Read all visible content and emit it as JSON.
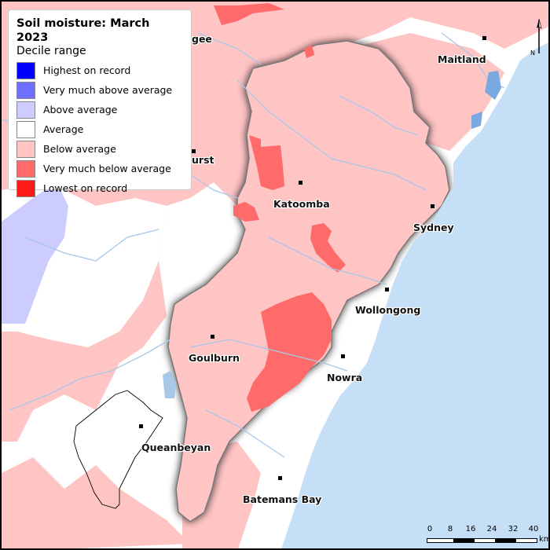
{
  "legend": {
    "title": "Soil moisture: March 2023",
    "subtitle": "Decile range",
    "items": [
      {
        "label": "Highest on record",
        "color": "#0000ff"
      },
      {
        "label": "Very much above average",
        "color": "#6f6fff"
      },
      {
        "label": "Above average",
        "color": "#ccccff"
      },
      {
        "label": "Average",
        "color": "#ffffff"
      },
      {
        "label": "Below average",
        "color": "#ffc4c4"
      },
      {
        "label": "Very much below average",
        "color": "#ff6a6a"
      },
      {
        "label": "Lowest on record",
        "color": "#ff1a1a"
      }
    ]
  },
  "places": {
    "mudgee": "gee",
    "bathurst": "urst",
    "maitland": "Maitland",
    "katoomba": "Katoomba",
    "sydney": "Sydney",
    "wollongong": "Wollongong",
    "goulburn": "Goulburn",
    "nowra": "Nowra",
    "queanbeyan": "Queanbeyan",
    "batemans_bay": "Batemans Bay"
  },
  "north_arrow": {
    "label": "N"
  },
  "scale": {
    "ticks": [
      "0",
      "8",
      "16",
      "24",
      "32",
      "40"
    ],
    "unit": "km"
  },
  "colors": {
    "sea": "#c5dff7",
    "water": "#a8c8e8",
    "land": "#ffffff"
  }
}
